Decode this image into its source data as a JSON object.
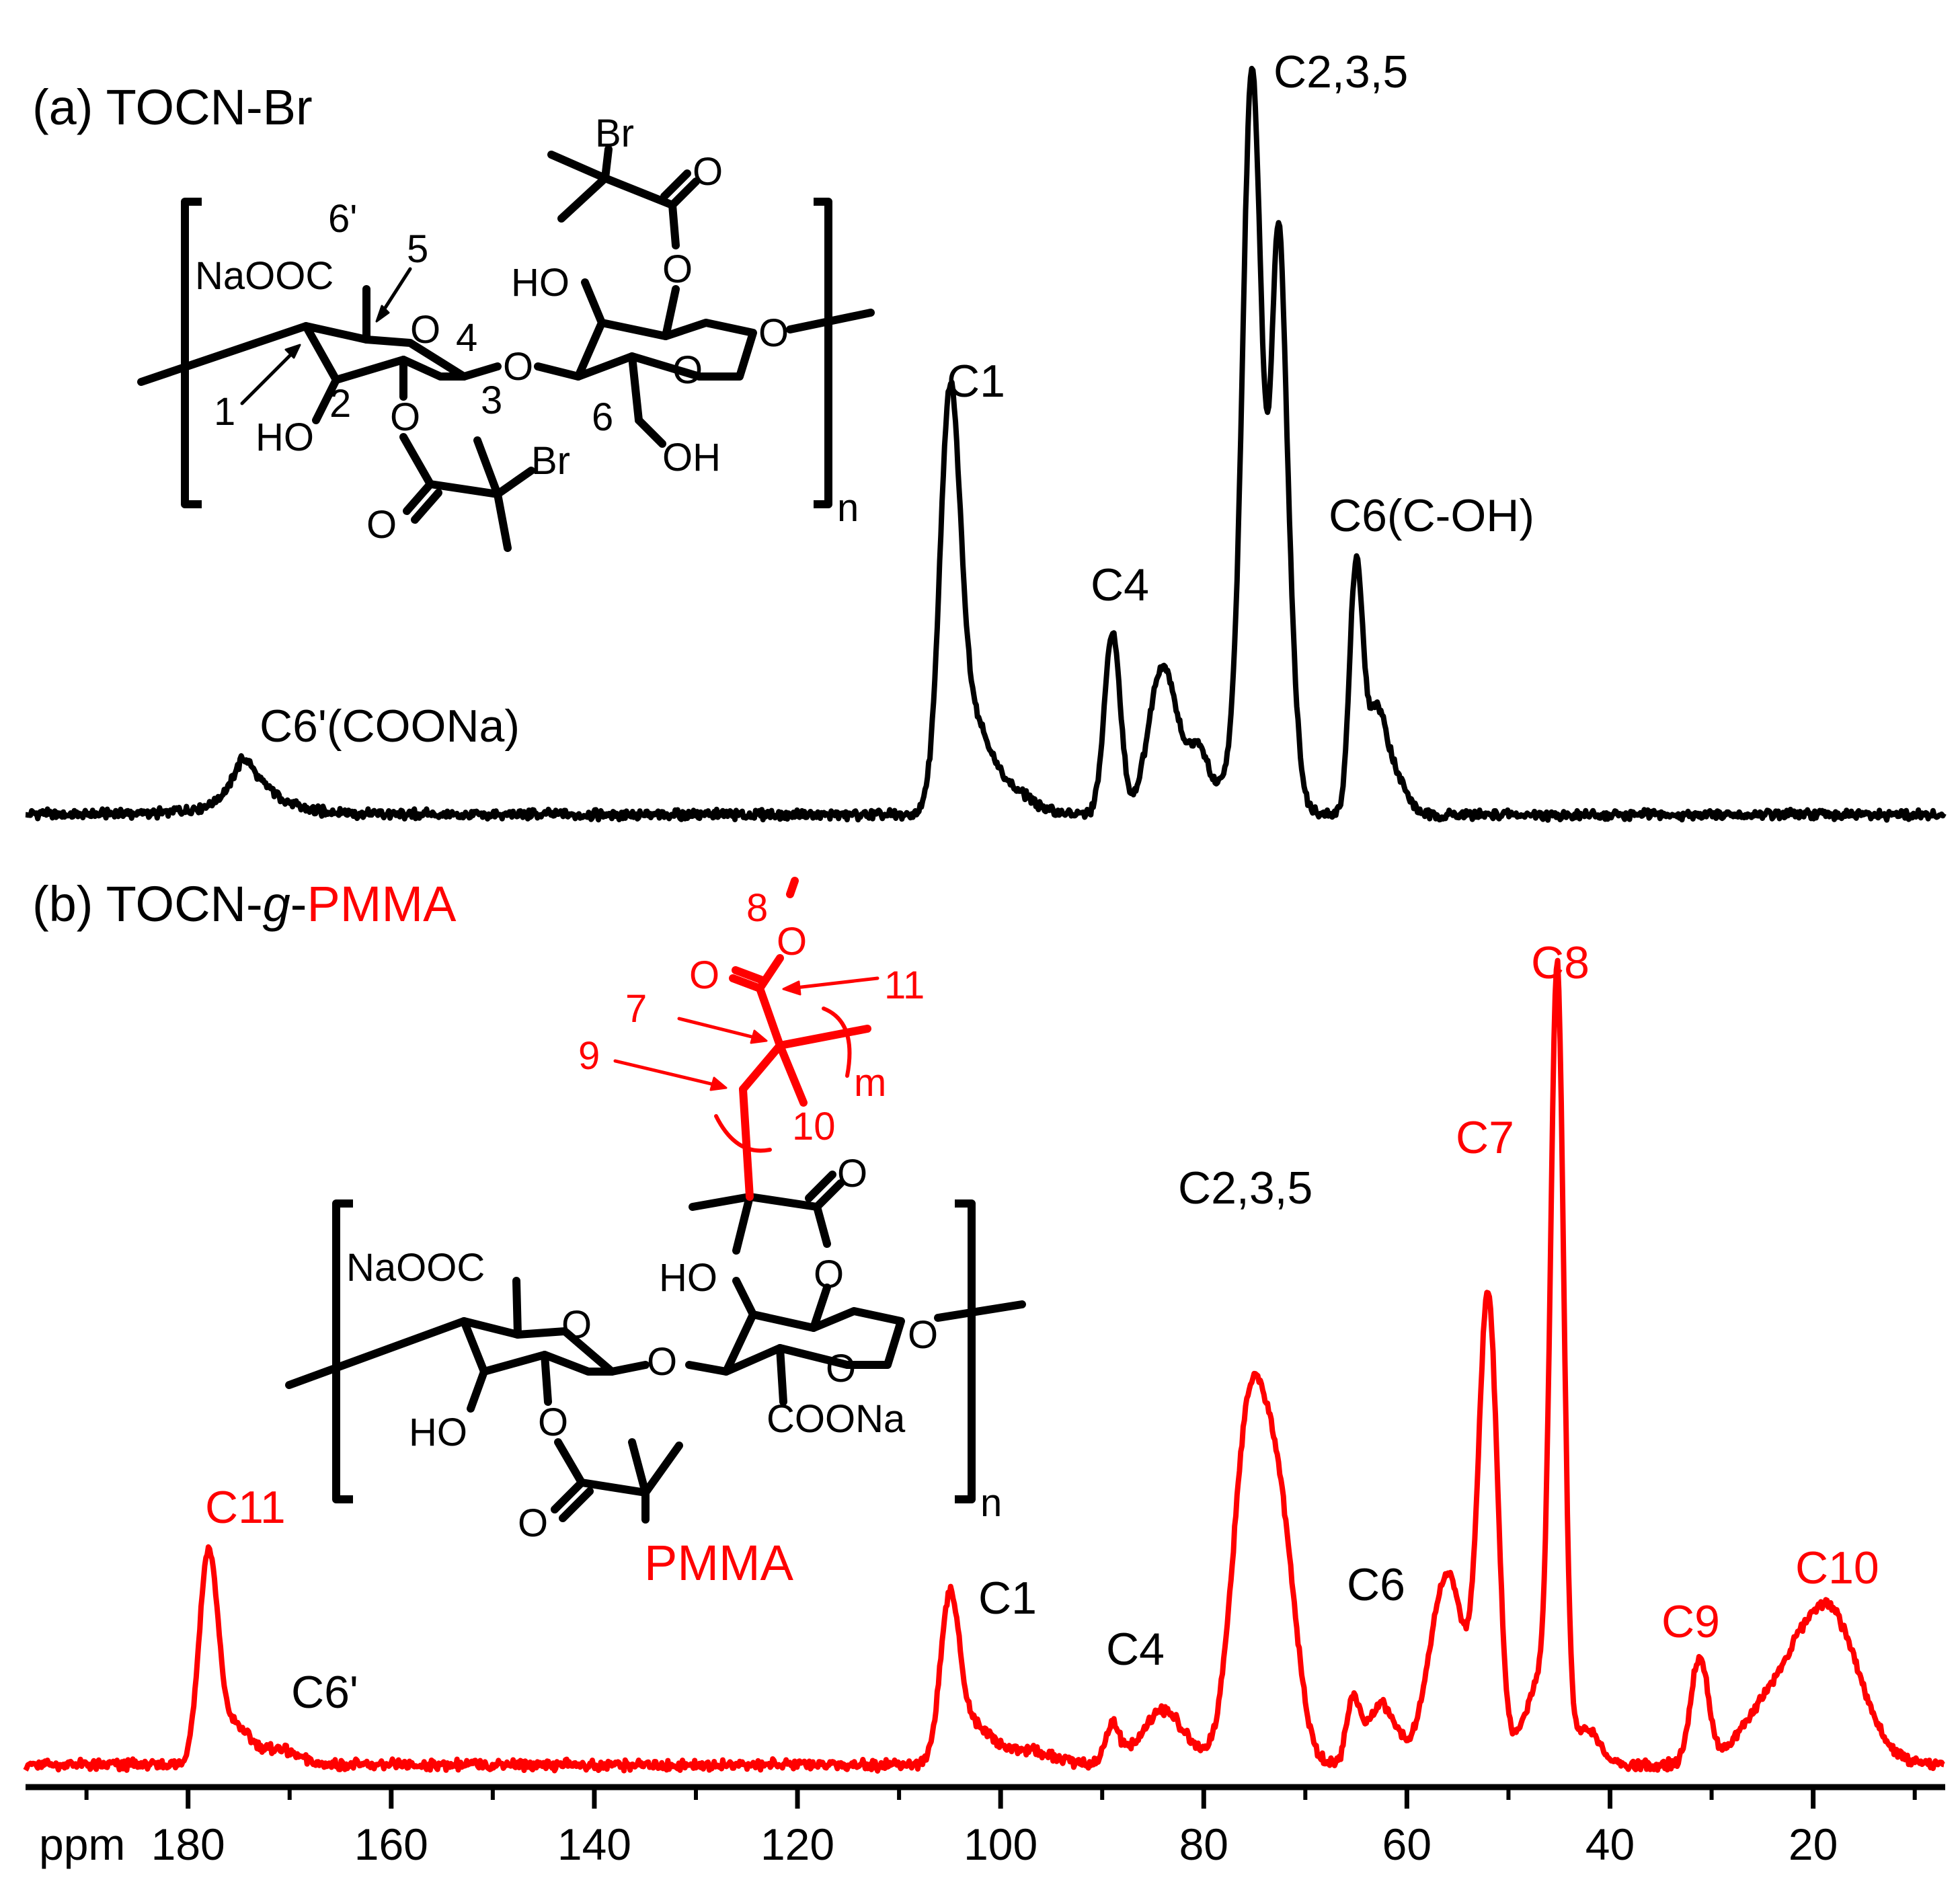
{
  "colors": {
    "black": "#000000",
    "red": "#ff0000"
  },
  "panel_a": {
    "label": "(a) TOCN-Br",
    "structure": {
      "NaOOC": "NaOOC",
      "c6p": "6'",
      "c5": "5",
      "c4": "4",
      "c3": "3",
      "c2": "2",
      "c1": "1",
      "c6": "6",
      "O": "O",
      "HO": "HO",
      "OH": "OH",
      "Br": "Br",
      "n": "n"
    },
    "peaks": {
      "C1": "C1",
      "C4": "C4",
      "C235": "C2,3,5",
      "C6": "C6(C-OH)",
      "C6p": "C6'(COONa)"
    }
  },
  "panel_b": {
    "label_prefix": "(b) TOCN-",
    "label_g": "g",
    "label_dash": "-",
    "label_pmma": "PMMA",
    "structure": {
      "NaOOC": "NaOOC",
      "COONa": "COONa",
      "O": "O",
      "HO": "HO",
      "PMMA": "PMMA",
      "n": "n",
      "m": "m",
      "c7": "7",
      "c8": "8",
      "c9": "9",
      "c10": "10",
      "c11": "11"
    },
    "peaks": {
      "C11": "C11",
      "C6p": "C6'",
      "C1": "C1",
      "C4": "C4",
      "C235": "C2,3,5",
      "C6": "C6",
      "C7": "C7",
      "C8": "C8",
      "C9": "C9",
      "C10": "C10"
    }
  },
  "axis": {
    "unit": "ppm"
  },
  "chart_data": [
    {
      "type": "line",
      "name": "TOCN-Br",
      "xlabel": "ppm",
      "xlim": [
        196,
        7
      ],
      "xticks": [
        180,
        160,
        140,
        120,
        100,
        80,
        60,
        40,
        20
      ],
      "peaks": [
        {
          "label": "C6'(COONa)",
          "x": 174,
          "y": 0.07
        },
        {
          "label": "C1",
          "x": 105,
          "y": 0.51
        },
        {
          "label": "C4",
          "x": 89,
          "y": 0.26
        },
        {
          "label": "C2,3,5",
          "x": 75,
          "y": 1.0
        },
        {
          "label": "C6(C-OH)",
          "x": 65,
          "y": 0.35
        }
      ]
    },
    {
      "type": "line",
      "name": "TOCN-g-PMMA",
      "xlabel": "ppm",
      "xlim": [
        196,
        7
      ],
      "xticks": [
        180,
        160,
        140,
        120,
        100,
        80,
        60,
        40,
        20
      ],
      "peaks": [
        {
          "label": "C11",
          "x": 178,
          "y": 0.28
        },
        {
          "label": "C6'",
          "x": 172,
          "y": 0.03
        },
        {
          "label": "C1",
          "x": 105,
          "y": 0.25
        },
        {
          "label": "C4",
          "x": 89,
          "y": 0.07
        },
        {
          "label": "C2,3,5",
          "x": 75,
          "y": 0.7
        },
        {
          "label": "C6",
          "x": 65,
          "y": 0.15
        },
        {
          "label": "C7",
          "x": 52,
          "y": 0.73
        },
        {
          "label": "C8",
          "x": 45,
          "y": 1.0
        },
        {
          "label": "C9",
          "x": 31,
          "y": 0.14
        },
        {
          "label": "C10",
          "x": 18,
          "y": 0.21
        }
      ]
    }
  ]
}
